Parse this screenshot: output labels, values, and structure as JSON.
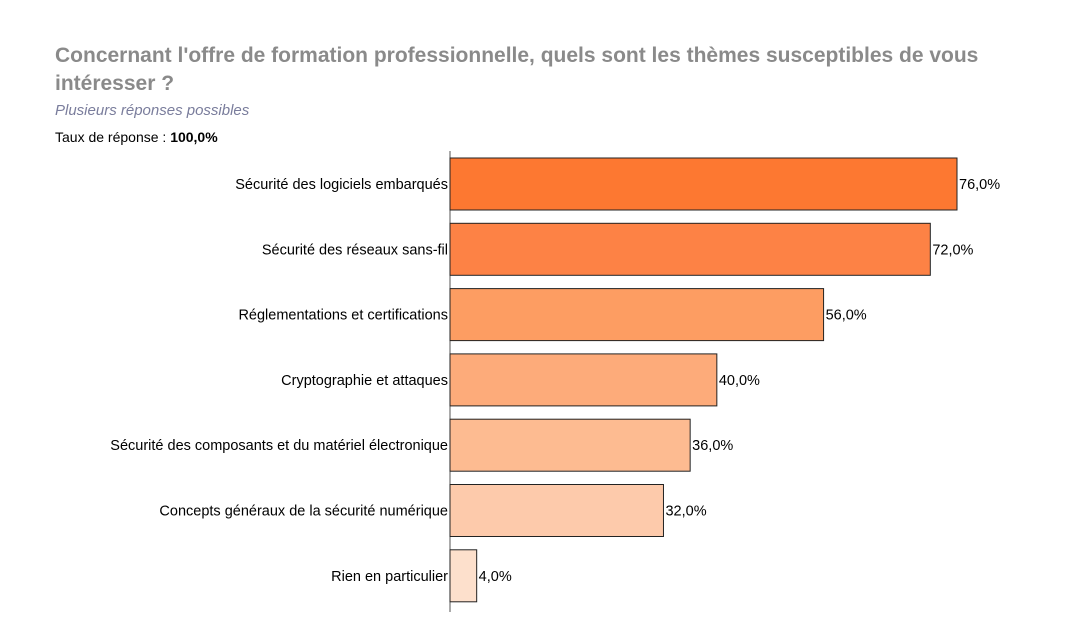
{
  "header": {
    "title": "Concernant l'offre de formation professionnelle, quels sont les thèmes susceptibles de vous intéresser ?",
    "subtitle": "Plusieurs réponses possibles",
    "rate_label": "Taux de réponse : ",
    "rate_value": "100,0%"
  },
  "chart_data": {
    "type": "bar",
    "orientation": "horizontal",
    "categories": [
      "Sécurité des logiciels embarqués",
      "Sécurité des réseaux sans-fil",
      "Réglementations et certifications",
      "Cryptographie et attaques",
      "Sécurité des composants et du matériel électronique",
      "Concepts généraux de la sécurité numérique",
      "Rien en particulier"
    ],
    "values": [
      76.0,
      72.0,
      56.0,
      40.0,
      36.0,
      32.0,
      4.0
    ],
    "value_labels": [
      "76,0%",
      "72,0%",
      "56,0%",
      "40,0%",
      "36,0%",
      "32,0%",
      "4,0%"
    ],
    "colors": [
      "#fd7831",
      "#fd8245",
      "#fd9d62",
      "#fdab7a",
      "#fdbb91",
      "#fdcaab",
      "#fde0cc"
    ],
    "bar_border": "#222222",
    "xlim": [
      0,
      100
    ],
    "grid": false
  }
}
